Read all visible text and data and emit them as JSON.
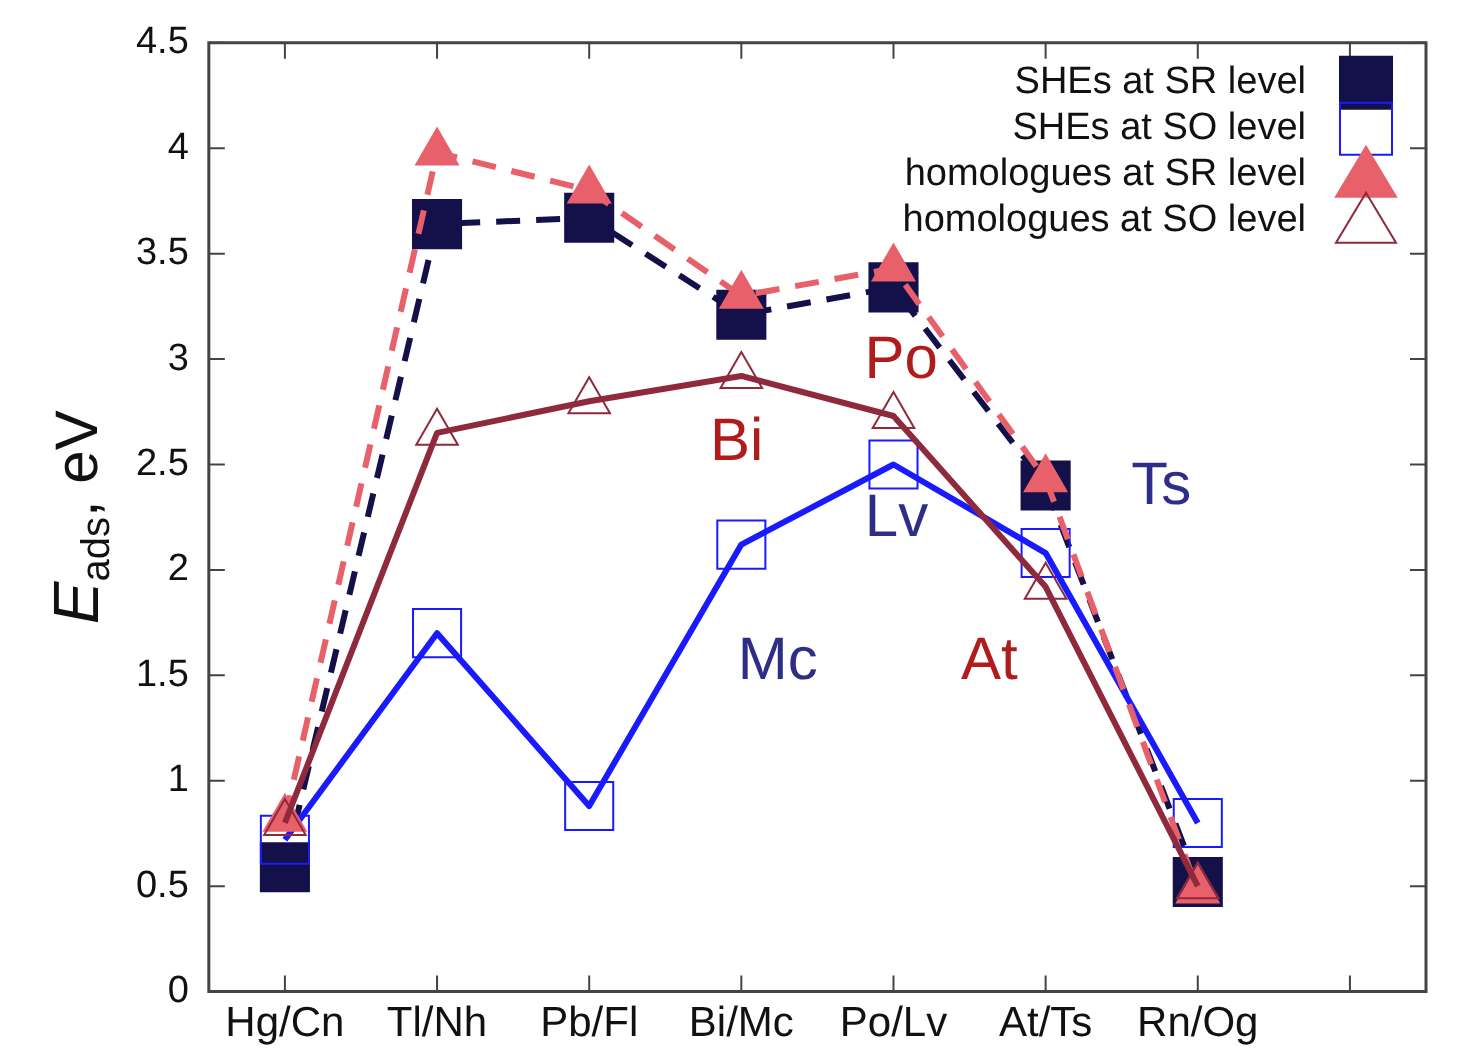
{
  "chart_data": {
    "type": "line",
    "ylabel": "E$_{ads}$, eV",
    "categories": [
      "Hg/Cn",
      "Tl/Nh",
      "Pb/Fl",
      "Bi/Mc",
      "Po/Lv",
      "At/Ts",
      "Rn/Og",
      null
    ],
    "ylim": [
      0,
      4.5
    ],
    "yticks": [
      0,
      0.5,
      1,
      1.5,
      2,
      2.5,
      3,
      3.5,
      4,
      4.5
    ],
    "grid": false,
    "legend": "top right",
    "series": [
      {
        "name": "SHEs at SR level",
        "color": "#14104a",
        "marker": "square",
        "line_style": "dashed",
        "values": [
          0.59,
          3.64,
          3.67,
          3.21,
          3.34,
          2.4,
          0.52,
          null
        ]
      },
      {
        "name": "SHEs at SO level",
        "color": "#1a1aff",
        "marker": "square",
        "line_style": "solid",
        "values": [
          0.72,
          1.7,
          0.88,
          2.12,
          2.5,
          2.08,
          0.8,
          null
        ]
      },
      {
        "name": "homologues at SR level",
        "color": "#e8606a",
        "marker": "triangle",
        "line_style": "dashed",
        "values": [
          0.82,
          3.98,
          3.8,
          3.3,
          3.43,
          2.43,
          0.48,
          null
        ]
      },
      {
        "name": "homologues at SO level",
        "color": "#8e2a3c",
        "marker": "triangle",
        "line_style": "solid",
        "values": [
          0.8,
          2.65,
          2.8,
          2.92,
          2.73,
          1.92,
          0.5,
          null
        ]
      }
    ],
    "annotations": [
      "Po",
      "Bi",
      "Lv",
      "Mc",
      "At",
      "Ts"
    ]
  }
}
